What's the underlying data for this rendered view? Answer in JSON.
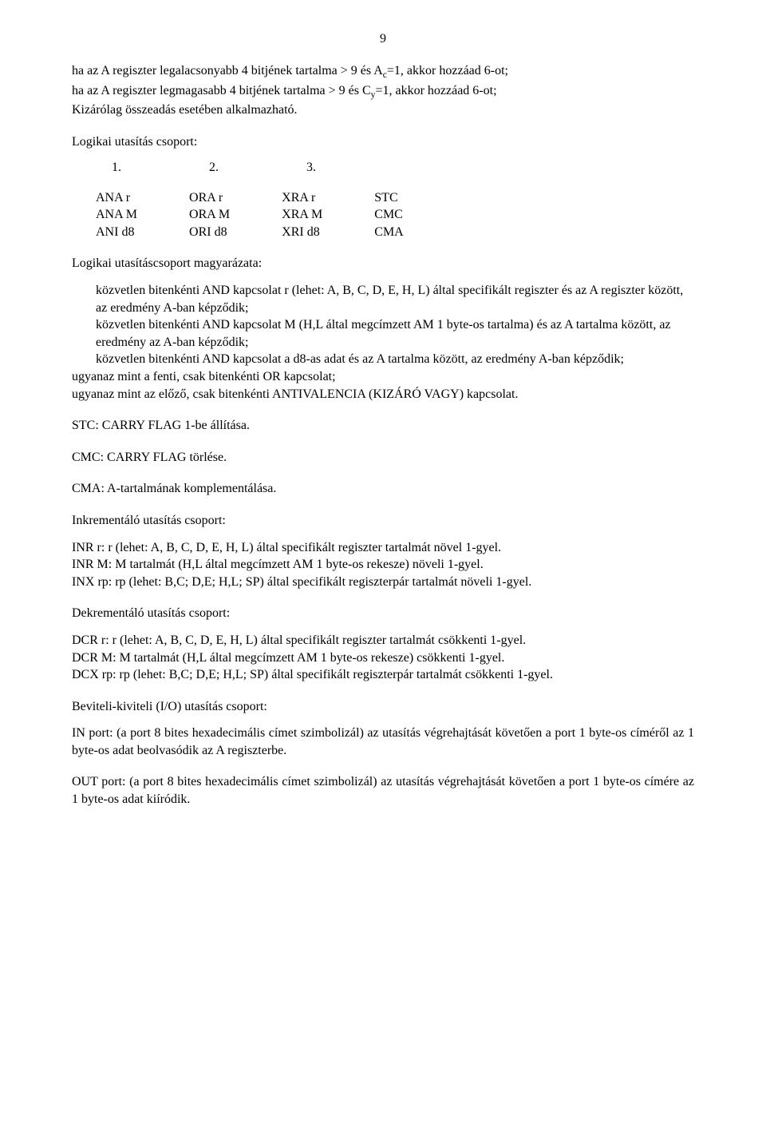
{
  "page_number": "9",
  "intro_p1_a": "ha az A regiszter legalacsonyabb 4 bitjének tartalma > 9 és A",
  "intro_p1_sub1": "c",
  "intro_p1_b": "=1, akkor hozzáad 6-ot;",
  "intro_p2_a": "ha az A regiszter legmagasabb 4 bitjének tartalma > 9 és C",
  "intro_p2_sub1": "y",
  "intro_p2_b": "=1, akkor hozzáad 6-ot;",
  "intro_p3": "Kizárólag összeadás esetében alkalmazható.",
  "logic_heading": "Logikai utasítás csoport:",
  "num1": "1.",
  "num2": "2.",
  "num3": "3.",
  "instr_table": {
    "rows": [
      [
        "ANA r",
        "ORA  r",
        "XRA  r",
        "STC"
      ],
      [
        "ANA M",
        "ORA M",
        "XRA M",
        "CMC"
      ],
      [
        "ANI d8",
        "ORI  d8",
        "XRI  d8",
        "CMA"
      ]
    ]
  },
  "logic_explain_heading": "Logikai utasításcsoport magyarázata:",
  "explain1": "közvetlen bitenkénti AND kapcsolat r (lehet: A, B, C, D, E, H, L) által specifikált regiszter és az A regiszter között, az eredmény A-ban képződik;",
  "explain2": "közvetlen bitenkénti AND kapcsolat M (H,L által megcímzett AM 1 byte-os tartalma) és az A tartalma között, az eredmény az A-ban képződik;",
  "explain3": "közvetlen bitenkénti AND kapcsolat a d8-as adat és az A tartalma között, az eredmény A-ban képződik;",
  "explain4": "ugyanaz mint a fenti, csak bitenkénti OR kapcsolat;",
  "explain5": "ugyanaz mint az előző, csak bitenkénti ANTIVALENCIA (KIZÁRÓ VAGY) kapcsolat.",
  "stc": "STC: CARRY FLAG 1-be állítása.",
  "cmc": "CMC: CARRY FLAG törlése.",
  "cma": "CMA: A-tartalmának komplementálása.",
  "inc_heading": "Inkrementáló utasítás csoport:",
  "inr_r": "INR  r: r (lehet: A, B, C, D, E, H, L) által specifikált regiszter tartalmát növel 1-gyel.",
  "inr_m": "INR  M: M tartalmát (H,L által megcímzett AM 1 byte-os rekesze) növeli 1-gyel.",
  "inx_rp": "INX  rp: rp (lehet: B,C; D,E; H,L; SP) által specifikált regiszterpár tartalmát növeli 1-gyel.",
  "dec_heading": "Dekrementáló utasítás csoport:",
  "dcr_r": "DCR  r: r (lehet: A, B, C, D, E, H, L) által specifikált regiszter tartalmát csökkenti 1-gyel.",
  "dcr_m": "DCR  M: M tartalmát (H,L által megcímzett AM 1 byte-os rekesze) csökkenti 1-gyel.",
  "dcx_rp": "DCX  rp: rp (lehet: B,C; D,E; H,L; SP) által specifikált regiszterpár tartalmát csökkenti 1-gyel.",
  "io_heading": "Beviteli-kiviteli (I/O) utasítás csoport:",
  "in_port": "IN  port: (a port 8 bites hexadecimális címet szimbolizál) az utasítás végrehajtását követően a port 1 byte-os címéről az 1 byte-os adat beolvasódik az A regiszterbe.",
  "out_port": "OUT port: (a port 8 bites hexadecimális címet szimbolizál) az utasítás végrehajtását követően a port 1 byte-os címére az 1 byte-os adat kiíródik."
}
